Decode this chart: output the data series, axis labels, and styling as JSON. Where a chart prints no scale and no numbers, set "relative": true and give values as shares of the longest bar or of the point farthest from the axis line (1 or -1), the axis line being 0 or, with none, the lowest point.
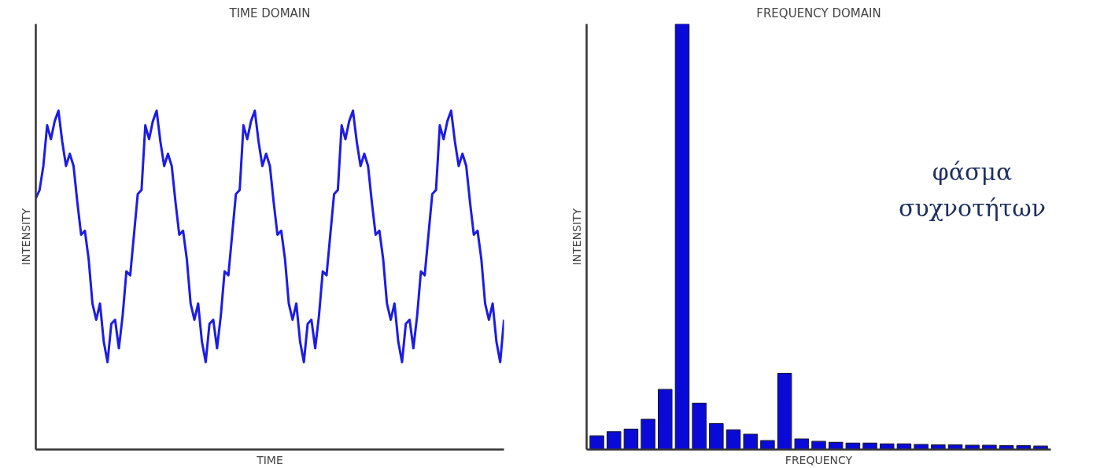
{
  "chart_data": [
    {
      "type": "line",
      "title": "TIME DOMAIN",
      "xlabel": "TIME",
      "ylabel": "INTENSITY",
      "relative": true,
      "tick_labels": false,
      "marker": "none",
      "line_style": "solid",
      "categories": [
        null,
        null,
        null,
        null,
        null,
        null,
        null,
        null,
        null,
        null,
        null,
        null,
        null,
        null,
        null,
        null,
        null,
        null,
        null,
        null,
        null,
        null,
        null,
        null,
        null,
        null,
        null,
        null,
        null,
        null,
        null,
        null,
        null,
        null,
        null,
        null,
        null,
        null,
        null,
        null,
        null,
        null,
        null,
        null,
        null,
        null,
        null,
        null,
        null,
        null,
        null,
        null,
        null,
        null,
        null,
        null,
        null,
        null,
        null,
        null,
        null,
        null,
        null,
        null,
        null,
        null,
        null,
        null,
        null,
        null,
        null,
        null,
        null,
        null,
        null,
        null,
        null,
        null,
        null,
        null,
        null,
        null,
        null,
        null,
        null,
        null,
        null,
        null,
        null,
        null,
        null,
        null,
        null,
        null,
        null,
        null,
        null,
        null,
        null,
        null,
        null,
        null,
        null,
        null,
        null,
        null,
        null,
        null,
        null,
        null,
        null,
        null,
        null,
        null,
        null,
        null,
        null,
        null,
        null,
        null,
        null,
        null,
        null,
        null,
        null
      ],
      "series": [
        {
          "color": "#1c1ce6",
          "values": [
            0.742,
            0.766,
            0.837,
            0.957,
            0.916,
            0.969,
            1.0,
            0.909,
            0.837,
            0.873,
            0.837,
            0.73,
            0.634,
            0.646,
            0.562,
            0.431,
            0.383,
            0.431,
            0.318,
            0.258,
            0.371,
            0.383,
            0.299,
            0.395,
            0.526,
            0.514,
            0.634,
            0.754,
            0.766,
            0.957,
            0.916,
            0.969,
            1.0,
            0.909,
            0.837,
            0.873,
            0.837,
            0.73,
            0.634,
            0.646,
            0.562,
            0.431,
            0.383,
            0.431,
            0.318,
            0.258,
            0.371,
            0.383,
            0.299,
            0.395,
            0.526,
            0.514,
            0.634,
            0.754,
            0.766,
            0.957,
            0.916,
            0.969,
            1.0,
            0.909,
            0.837,
            0.873,
            0.837,
            0.73,
            0.634,
            0.646,
            0.562,
            0.431,
            0.383,
            0.431,
            0.318,
            0.258,
            0.371,
            0.383,
            0.299,
            0.395,
            0.526,
            0.514,
            0.634,
            0.754,
            0.766,
            0.957,
            0.916,
            0.969,
            1.0,
            0.909,
            0.837,
            0.873,
            0.837,
            0.73,
            0.634,
            0.646,
            0.562,
            0.431,
            0.383,
            0.431,
            0.318,
            0.258,
            0.371,
            0.383,
            0.299,
            0.395,
            0.526,
            0.514,
            0.634,
            0.754,
            0.766,
            0.957,
            0.916,
            0.969,
            1.0,
            0.909,
            0.837,
            0.873,
            0.837,
            0.73,
            0.634,
            0.646,
            0.562,
            0.431,
            0.383,
            0.431,
            0.318,
            0.258,
            0.383
          ]
        }
      ]
    },
    {
      "type": "bar",
      "title": "FREQUENCY DOMAIN",
      "xlabel": "FREQUENCY",
      "ylabel": "INTENSITY",
      "relative": true,
      "tick_labels": false,
      "color": "#0a0ad8",
      "categories": [
        null,
        null,
        null,
        null,
        null,
        null,
        null,
        null,
        null,
        null,
        null,
        null,
        null,
        null,
        null,
        null,
        null,
        null,
        null,
        null,
        null,
        null,
        null,
        null,
        null,
        null,
        null
      ],
      "values": [
        0.032,
        0.042,
        0.048,
        0.071,
        0.141,
        1.0,
        0.109,
        0.061,
        0.046,
        0.036,
        0.021,
        0.179,
        0.025,
        0.019,
        0.017,
        0.015,
        0.015,
        0.013,
        0.013,
        0.012,
        0.011,
        0.011,
        0.01,
        0.01,
        0.009,
        0.009,
        0.008
      ],
      "annotations": [
        "φάσμα συχνοτήτων"
      ]
    }
  ]
}
